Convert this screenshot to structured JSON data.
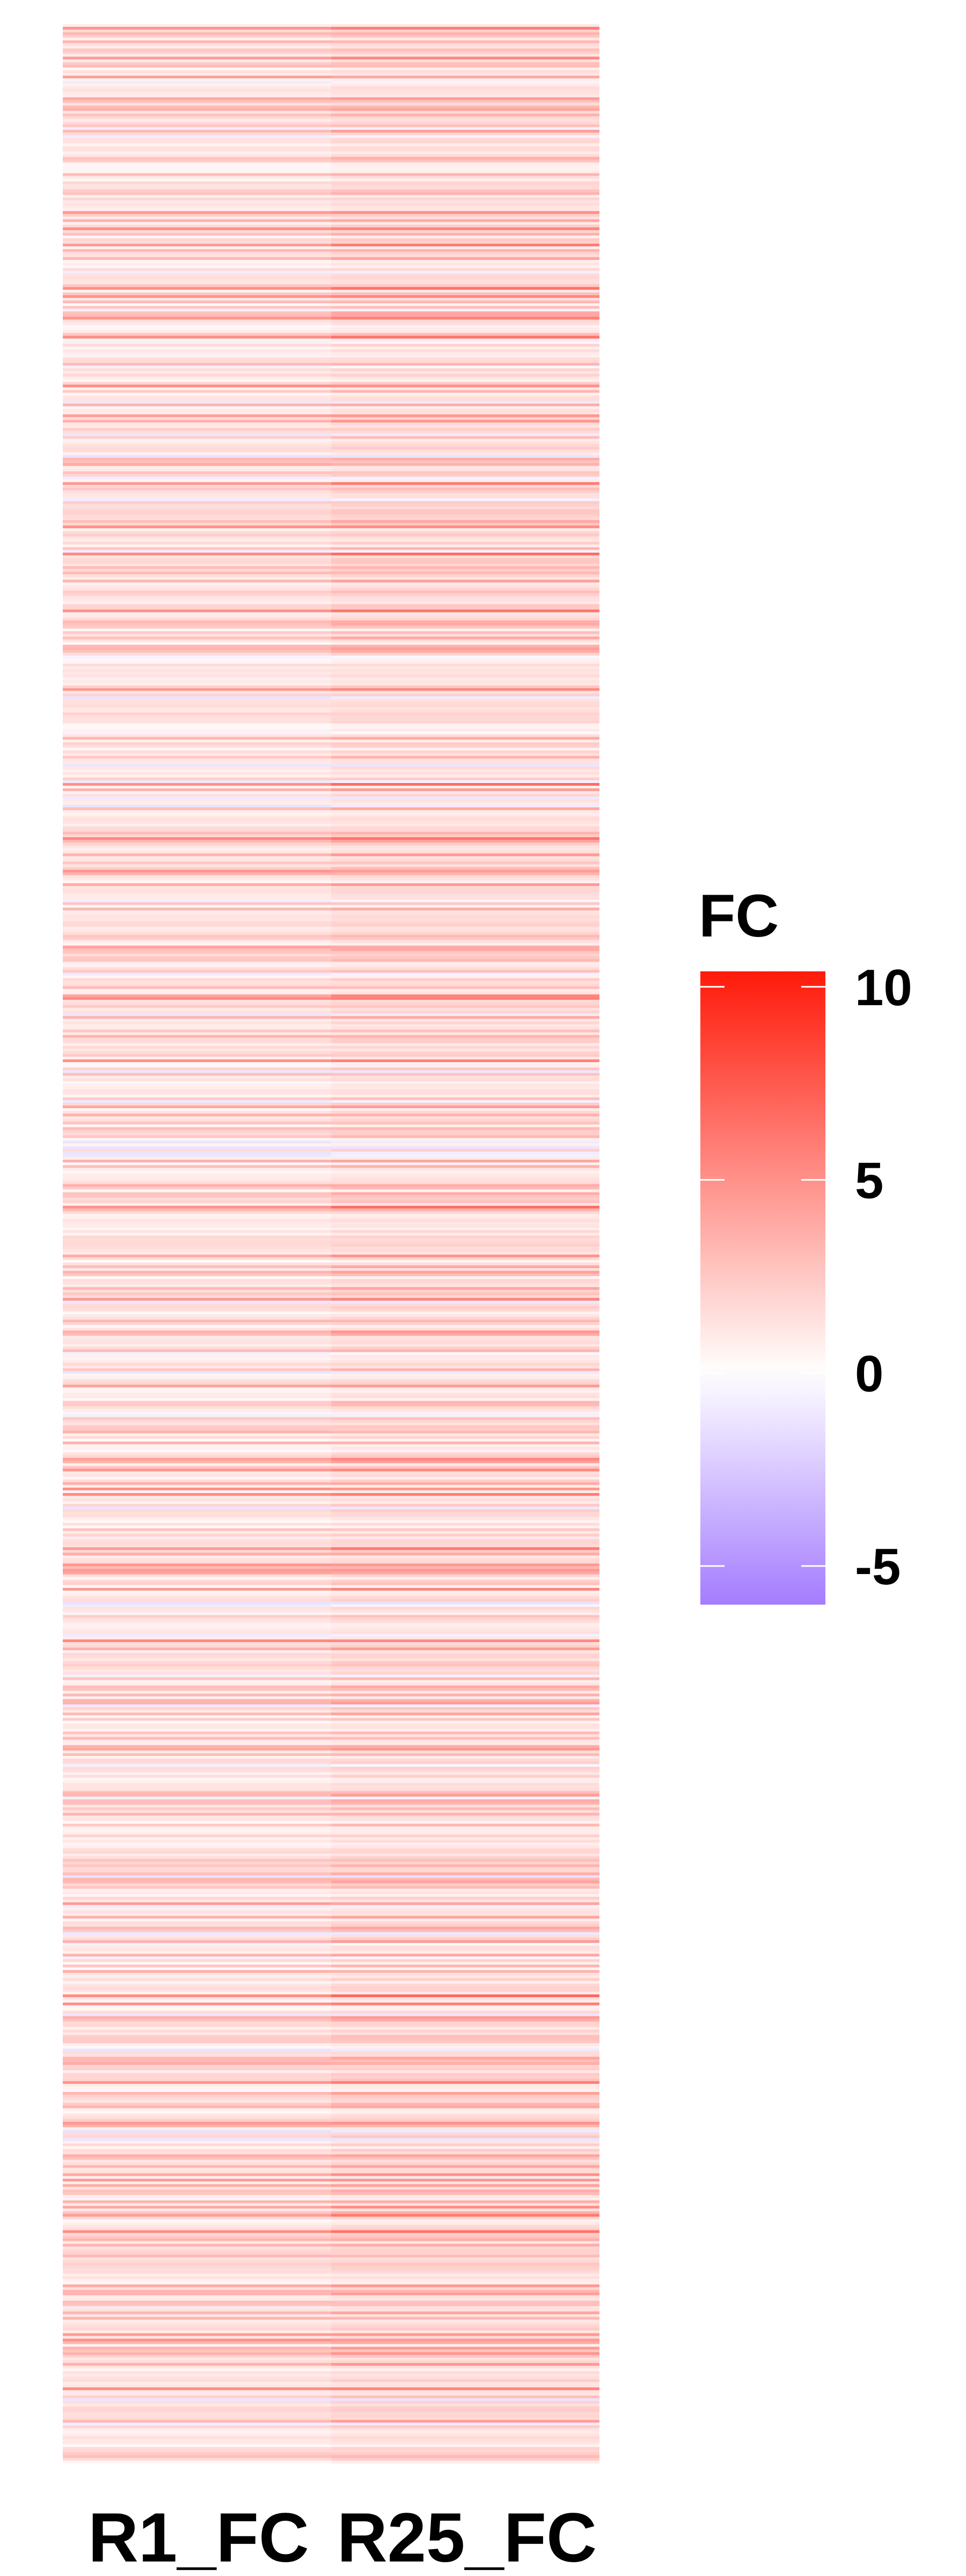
{
  "chart_data": {
    "type": "heatmap",
    "columns": [
      "R1_FC",
      "R25_FC"
    ],
    "n_rows": 900,
    "value_range": [
      -6,
      10.4
    ],
    "color_scale": {
      "low": "#a47cff",
      "mid": "#ffffff",
      "high": "#ff1a0a",
      "midpoint": 0
    },
    "legend": {
      "title": "FC",
      "ticks": [
        10,
        5,
        0,
        -5
      ],
      "tick_labels": [
        "10",
        "5",
        "0",
        "-5"
      ],
      "placement": "right"
    },
    "background": "#ffffff",
    "value_note": "Per-row values are approximate (thin stripes, mostly low positive fold changes)"
  }
}
